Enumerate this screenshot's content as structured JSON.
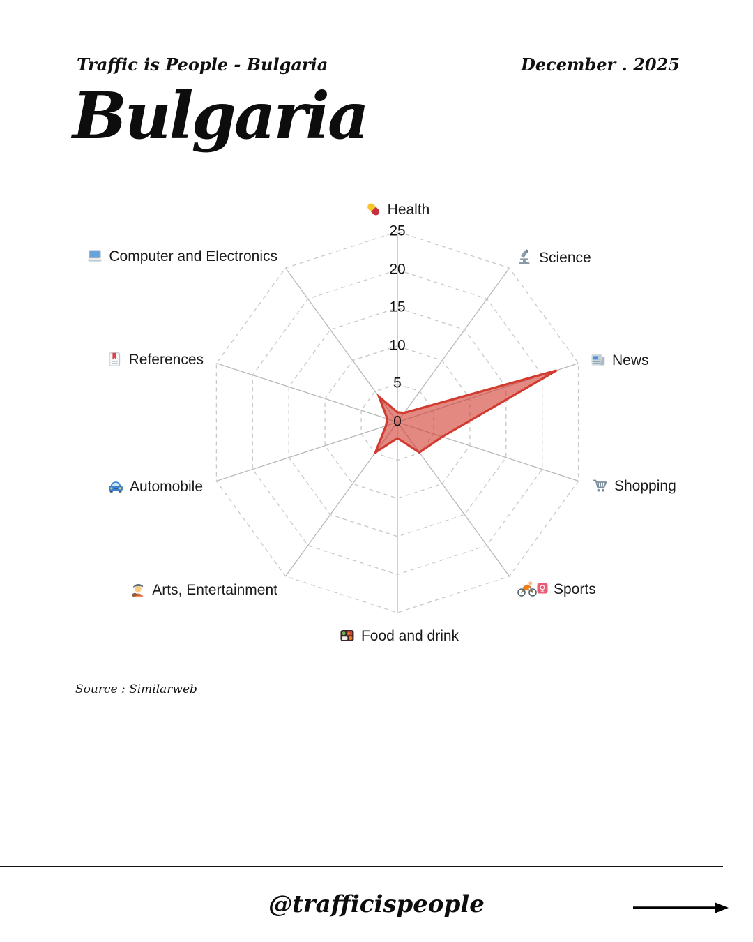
{
  "header": {
    "left": "Traffic is People - Bulgaria",
    "right": "December . 2025"
  },
  "title": "Bulgaria",
  "source": "Source : Similarweb",
  "footer": {
    "handle": "@trafficispeople",
    "arrow_icon": "right-arrow"
  },
  "chart_data": {
    "type": "radar",
    "title": "",
    "direction": "clockwise-from-top",
    "categories": [
      "Health",
      "Science",
      "News",
      "Shopping",
      "Sports",
      "Food and drink",
      "Arts, Entertainment",
      "Automobile",
      "References",
      "Computer and Electronics"
    ],
    "values": [
      1.3,
      1.5,
      22,
      6.2,
      4.9,
      2.1,
      4.9,
      1.6,
      1.4,
      4.1
    ],
    "icon_names": [
      "pill-icon",
      "microscope-icon",
      "newspaper-icon",
      "shopping-cart-icon",
      "woman-biking-icon",
      "bento-box-icon",
      "artist-icon",
      "blue-car-icon",
      "bookmark-tabs-icon",
      "laptop-icon"
    ],
    "axis": {
      "min": 0,
      "max": 25,
      "step": 5,
      "tick_labels": [
        "0",
        "5",
        "10",
        "15",
        "20",
        "25"
      ]
    },
    "grid": {
      "rings": "dashed-decagon",
      "spokes": "solid"
    },
    "colors": {
      "series_stroke": "#d23b2f",
      "series_fill": "rgba(208,58,46,0.6)",
      "ring": "#c8c8c8",
      "spoke": "#b8b8b8",
      "label_text": "#1a1a1a"
    }
  }
}
